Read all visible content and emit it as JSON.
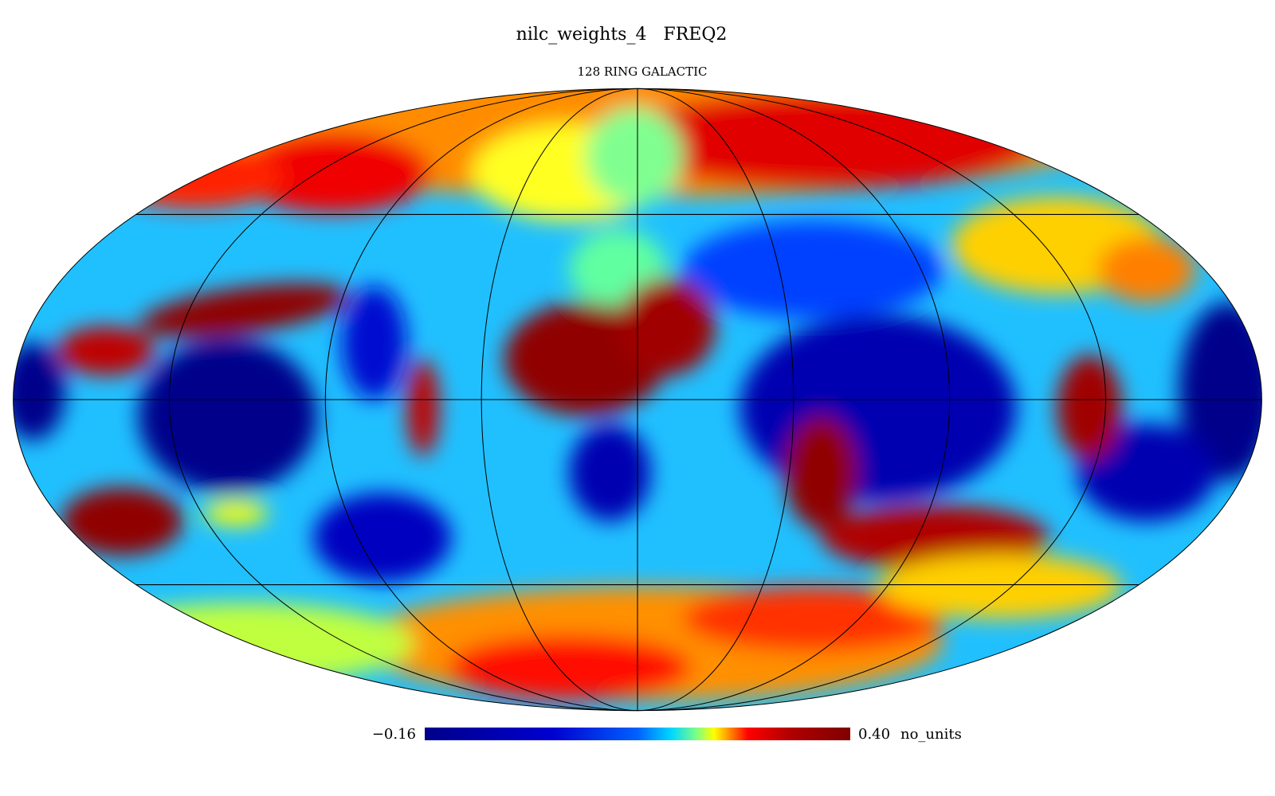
{
  "title": "nilc_weights_4   FREQ2",
  "subtitle": "128 RING GALACTIC",
  "colorbar": {
    "min": {
      "value": -0.16,
      "label": "−0.16"
    },
    "max": {
      "value": 0.4,
      "label": "0.40"
    },
    "unit": "no_units"
  }
}
